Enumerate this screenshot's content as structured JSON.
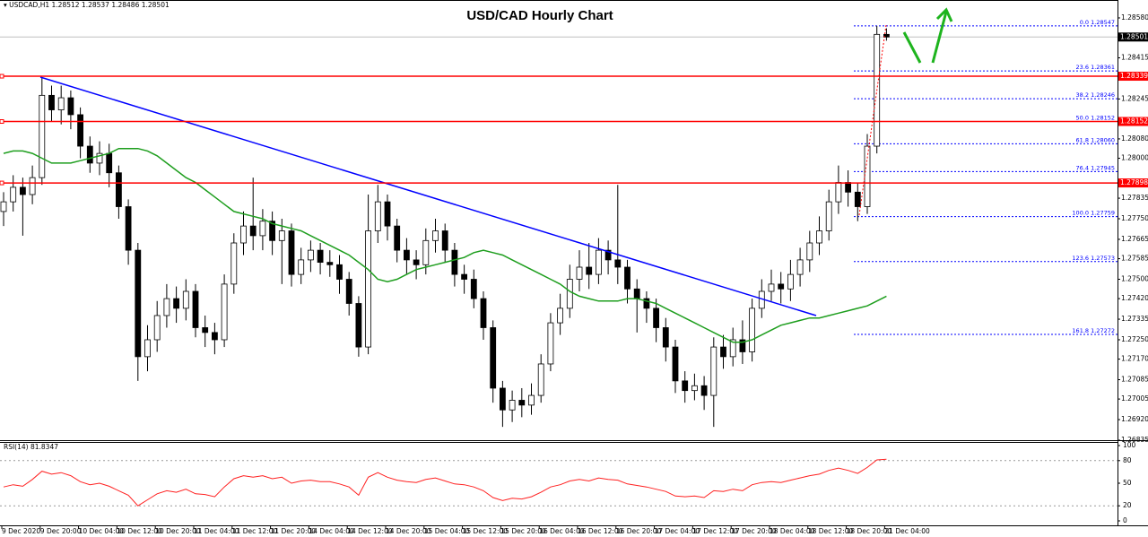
{
  "chart_data": {
    "type": "candlestick",
    "title": "USD/CAD Hourly Chart",
    "symbol": "USDCAD,H1",
    "up_color": "#ffffff",
    "down_color": "#000000",
    "categories": [
      "9 Dec 2020",
      null,
      null,
      null,
      "9 Dec 20:00",
      null,
      null,
      null,
      "10 Dec 04:00",
      null,
      null,
      null,
      "10 Dec 12:00",
      null,
      null,
      null,
      "10 Dec 20:00",
      null,
      null,
      null,
      "11 Dec 04:00",
      null,
      null,
      null,
      "11 Dec 12:00",
      null,
      null,
      null,
      "11 Dec 20:00",
      null,
      null,
      null,
      "14 Dec 04:00",
      null,
      null,
      null,
      "14 Dec 12:00",
      null,
      null,
      null,
      "14 Dec 20:00",
      null,
      null,
      null,
      "15 Dec 04:00",
      null,
      null,
      null,
      "15 Dec 12:00",
      null,
      null,
      null,
      "15 Dec 20:00",
      null,
      null,
      null,
      "16 Dec 04:00",
      null,
      null,
      null,
      "16 Dec 12:00",
      null,
      null,
      null,
      "16 Dec 20:00",
      null,
      null,
      null,
      "17 Dec 04:00",
      null,
      null,
      null,
      "17 Dec 12:00",
      null,
      null,
      null,
      "17 Dec 20:00",
      null,
      null,
      null,
      "18 Dec 04:00",
      null,
      null,
      null,
      "18 Dec 12:00",
      null,
      null,
      null,
      "18 Dec 20:00",
      null,
      null,
      null,
      "21 Dec 04:00"
    ],
    "open": [
      1.2778,
      1.2782,
      1.2788,
      1.2785,
      1.2792,
      1.2826,
      1.282,
      1.2825,
      1.2818,
      1.2805,
      1.2798,
      1.2802,
      1.2794,
      1.278,
      1.2762,
      1.2718,
      1.2725,
      1.2735,
      1.2742,
      1.2738,
      1.2745,
      1.273,
      1.2728,
      1.2725,
      1.2748,
      1.2765,
      1.2772,
      1.2768,
      1.2774,
      1.2766,
      1.277,
      1.2752,
      1.2758,
      1.2762,
      1.2757,
      1.2756,
      1.275,
      1.274,
      1.2722,
      1.277,
      1.2782,
      1.2772,
      1.2762,
      1.2758,
      1.2756,
      1.2766,
      1.277,
      1.2762,
      1.2752,
      1.275,
      1.2742,
      1.273,
      1.2705,
      1.2696,
      1.27,
      1.2698,
      1.2702,
      1.2715,
      1.2732,
      1.2738,
      1.275,
      1.2755,
      1.2752,
      1.2762,
      1.2758,
      1.2755,
      1.2746,
      1.2742,
      1.2738,
      1.273,
      1.2722,
      1.2708,
      1.2704,
      1.2706,
      1.2702,
      1.2722,
      1.2718,
      1.2725,
      1.272,
      1.2738,
      1.2745,
      1.2748,
      1.2746,
      1.2752,
      1.2758,
      1.2765,
      1.277,
      1.2782,
      1.279,
      1.2786,
      1.278,
      1.2805,
      1.28512
    ],
    "high": [
      1.2786,
      1.2793,
      1.2792,
      1.2797,
      1.28335,
      1.283,
      1.283,
      1.2828,
      1.2821,
      1.2809,
      1.2807,
      1.2806,
      1.2797,
      1.2783,
      1.2765,
      1.2731,
      1.2741,
      1.2748,
      1.2747,
      1.275,
      1.2748,
      1.2735,
      1.2732,
      1.2752,
      1.2769,
      1.2778,
      1.2792,
      1.2779,
      1.2778,
      1.2775,
      1.2773,
      1.2763,
      1.2766,
      1.2765,
      1.2762,
      1.276,
      1.2753,
      1.2743,
      1.2785,
      1.2789,
      1.2785,
      1.2775,
      1.2767,
      1.2762,
      1.2771,
      1.2775,
      1.2773,
      1.2765,
      1.2756,
      1.2754,
      1.2745,
      1.2733,
      1.2708,
      1.2704,
      1.2705,
      1.2707,
      1.2719,
      1.2736,
      1.2744,
      1.2756,
      1.2762,
      1.2765,
      1.2767,
      1.2766,
      1.2789,
      1.2758,
      1.275,
      1.2745,
      1.2742,
      1.2734,
      1.2725,
      1.2712,
      1.2711,
      1.271,
      1.2726,
      1.2727,
      1.273,
      1.2733,
      1.2742,
      1.275,
      1.2754,
      1.2753,
      1.2758,
      1.2763,
      1.277,
      1.2776,
      1.2787,
      1.2797,
      1.2795,
      1.279,
      1.281,
      1.28547,
      1.28537
    ],
    "low": [
      1.2772,
      1.2778,
      1.2768,
      1.2781,
      1.2789,
      1.2815,
      1.2814,
      1.2812,
      1.28,
      1.2794,
      1.2793,
      1.2788,
      1.2775,
      1.2756,
      1.2708,
      1.2712,
      1.272,
      1.273,
      1.2732,
      1.2733,
      1.2726,
      1.2722,
      1.2719,
      1.2722,
      1.2744,
      1.276,
      1.2762,
      1.2762,
      1.276,
      1.2748,
      1.2747,
      1.2748,
      1.2753,
      1.2752,
      1.2751,
      1.2744,
      1.2735,
      1.2718,
      1.2719,
      1.2765,
      1.2766,
      1.2757,
      1.2752,
      1.275,
      1.2752,
      1.2761,
      1.2757,
      1.2747,
      1.2744,
      1.2738,
      1.2725,
      1.2699,
      1.2689,
      1.2691,
      1.2693,
      1.2694,
      1.2699,
      1.2712,
      1.2727,
      1.2734,
      1.2745,
      1.2746,
      1.2748,
      1.2752,
      1.2748,
      1.274,
      1.2728,
      1.2732,
      1.2724,
      1.2716,
      1.2703,
      1.2699,
      1.27,
      1.2696,
      1.2689,
      1.2713,
      1.2714,
      1.2715,
      1.2716,
      1.2734,
      1.2741,
      1.274,
      1.2741,
      1.2747,
      1.2753,
      1.276,
      1.2766,
      1.2777,
      1.278,
      1.2774,
      1.2777,
      1.2802,
      1.28486
    ],
    "close": [
      1.2782,
      1.2788,
      1.2785,
      1.2792,
      1.2826,
      1.282,
      1.2825,
      1.2818,
      1.2805,
      1.2798,
      1.2802,
      1.2794,
      1.278,
      1.2762,
      1.2718,
      1.2725,
      1.2735,
      1.2742,
      1.2738,
      1.2745,
      1.273,
      1.2728,
      1.2725,
      1.2748,
      1.2765,
      1.2772,
      1.2768,
      1.2774,
      1.2766,
      1.277,
      1.2752,
      1.2758,
      1.2762,
      1.2757,
      1.2756,
      1.275,
      1.274,
      1.2722,
      1.277,
      1.2782,
      1.2772,
      1.2762,
      1.2758,
      1.2756,
      1.2766,
      1.277,
      1.2762,
      1.2752,
      1.275,
      1.2742,
      1.273,
      1.2705,
      1.2696,
      1.27,
      1.2698,
      1.2702,
      1.2715,
      1.2732,
      1.2738,
      1.275,
      1.2755,
      1.2752,
      1.2762,
      1.2758,
      1.2755,
      1.2746,
      1.2742,
      1.2738,
      1.273,
      1.2722,
      1.2708,
      1.2704,
      1.2706,
      1.2702,
      1.2722,
      1.2718,
      1.2725,
      1.272,
      1.2738,
      1.2745,
      1.2748,
      1.2746,
      1.2752,
      1.2758,
      1.2765,
      1.277,
      1.2782,
      1.279,
      1.2786,
      1.278,
      1.2805,
      1.28512,
      1.28501
    ],
    "ma": {
      "color": "#1e9e1e",
      "values": [
        1.2802,
        1.2803,
        1.2803,
        1.2802,
        1.28,
        1.2798,
        1.2798,
        1.2798,
        1.2799,
        1.28,
        1.2801,
        1.2802,
        1.2804,
        1.2804,
        1.2804,
        1.2803,
        1.2801,
        1.2798,
        1.2795,
        1.2792,
        1.279,
        1.2787,
        1.2784,
        1.2781,
        1.2778,
        1.2777,
        1.2776,
        1.2775,
        1.2773,
        1.2772,
        1.2771,
        1.277,
        1.2768,
        1.2766,
        1.2764,
        1.2762,
        1.276,
        1.2757,
        1.2754,
        1.275,
        1.2749,
        1.275,
        1.2752,
        1.2754,
        1.2755,
        1.2756,
        1.2757,
        1.2758,
        1.2759,
        1.2761,
        1.2762,
        1.2761,
        1.276,
        1.2758,
        1.2756,
        1.2754,
        1.2752,
        1.275,
        1.2748,
        1.2745,
        1.2743,
        1.2742,
        1.2741,
        1.2741,
        1.2741,
        1.2742,
        1.2742,
        1.2741,
        1.274,
        1.2738,
        1.2736,
        1.2734,
        1.2732,
        1.273,
        1.2728,
        1.2726,
        1.2724,
        1.2724,
        1.2725,
        1.2727,
        1.2729,
        1.2731,
        1.2732,
        1.2733,
        1.2734,
        1.2734,
        1.2735,
        1.2736,
        1.2737,
        1.2738,
        1.2739,
        1.2741,
        1.2743
      ]
    },
    "ylim": [
      1.26835,
      1.28654
    ],
    "yticks": [
      {
        "value": 1.2858,
        "label": "1.28580"
      },
      1.28415,
      1.28245,
      {
        "value": 1.2808,
        "label": "1.28080"
      },
      {
        "value": 1.28,
        "label": "1.28000"
      },
      1.27835,
      {
        "value": 1.2775,
        "label": "1.27750"
      },
      1.27665,
      1.27585,
      {
        "value": 1.275,
        "label": "1.27500"
      },
      {
        "value": 1.2742,
        "label": "1.27420"
      },
      1.27335,
      {
        "value": 1.2725,
        "label": "1.27250"
      },
      {
        "value": 1.2717,
        "label": "1.27170"
      },
      1.27085,
      1.27005,
      {
        "value": 1.2692,
        "label": "1.26920"
      },
      1.26835
    ],
    "price_levels": [
      1.28339,
      1.28152,
      1.27898
    ],
    "level_color": "#ff0000",
    "fib_color": "#0000ff",
    "fib_levels": [
      {
        "level": "0.0",
        "price": 1.28547
      },
      {
        "level": "23.6",
        "price": 1.28361
      },
      {
        "level": "38.2",
        "price": 1.28246
      },
      {
        "level": "50.0",
        "price": 1.28152
      },
      {
        "level": "61.8",
        "price": {
          "value": 1.2806,
          "label": "1.28060"
        }
      },
      {
        "level": "76.4",
        "price": 1.27945
      },
      {
        "level": "100.0",
        "price": 1.27759
      },
      {
        "level": "123.6",
        "price": 1.27573
      },
      {
        "level": "161.8",
        "price": 1.27272
      }
    ],
    "rsi": {
      "name": "RSI(14)",
      "color": "#ff2020",
      "ylim": [
        0,
        100
      ],
      "yticks": [
        100,
        80,
        50,
        20,
        0
      ],
      "levels": [
        80,
        20
      ],
      "values": [
        45,
        48,
        46,
        55,
        66,
        62,
        64,
        60,
        52,
        48,
        50,
        46,
        40,
        34,
        20,
        28,
        36,
        40,
        38,
        42,
        36,
        35,
        32,
        45,
        56,
        60,
        58,
        60,
        56,
        58,
        50,
        53,
        54,
        52,
        52,
        49,
        45,
        34,
        58,
        64,
        58,
        54,
        52,
        51,
        55,
        57,
        53,
        49,
        48,
        45,
        40,
        31,
        27,
        30,
        29,
        32,
        38,
        45,
        48,
        53,
        55,
        53,
        57,
        55,
        54,
        49,
        47,
        45,
        42,
        39,
        33,
        32,
        33,
        31,
        40,
        39,
        42,
        40,
        48,
        51,
        52,
        51,
        54,
        57,
        60,
        62,
        67,
        70,
        67,
        63,
        71,
        81,
        81.8347
      ]
    }
  }
}
